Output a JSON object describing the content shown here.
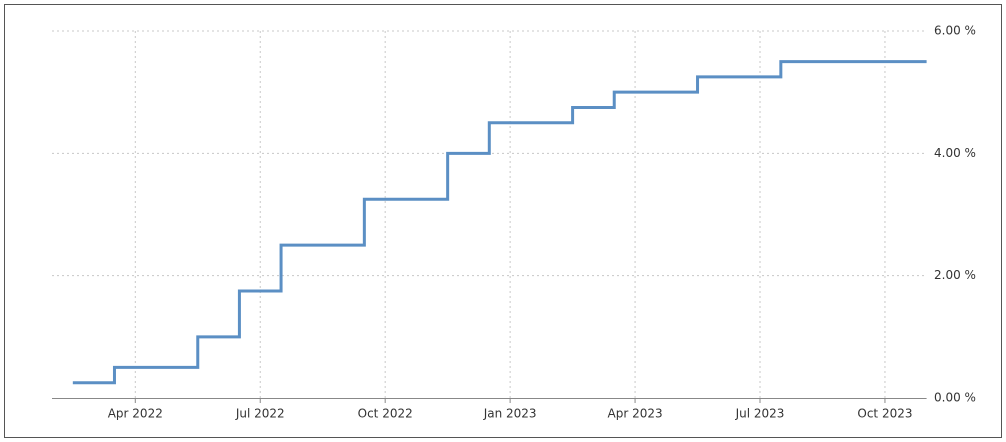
{
  "chart_data": {
    "type": "line",
    "step": "post",
    "color": "#5b8fc4",
    "grid": true,
    "x": [
      "2022-02",
      "2022-03",
      "2022-05",
      "2022-06",
      "2022-07",
      "2022-09",
      "2022-11",
      "2022-12",
      "2023-02",
      "2023-03",
      "2023-05",
      "2023-07"
    ],
    "values": [
      0.25,
      0.5,
      1.0,
      1.75,
      2.5,
      3.25,
      4.0,
      4.5,
      4.75,
      5.0,
      5.25,
      5.5
    ],
    "xlim": [
      "2022-02",
      "2023-11"
    ],
    "xticks": [
      {
        "value": "2022-04",
        "label": "Apr 2022"
      },
      {
        "value": "2022-07",
        "label": "Jul 2022"
      },
      {
        "value": "2022-10",
        "label": "Oct 2022"
      },
      {
        "value": "2023-01",
        "label": "Jan 2023"
      },
      {
        "value": "2023-04",
        "label": "Apr 2023"
      },
      {
        "value": "2023-07",
        "label": "Jul 2023"
      },
      {
        "value": "2023-10",
        "label": "Oct 2023"
      }
    ],
    "ylim": [
      0,
      6
    ],
    "yticks": [
      {
        "value": 0,
        "label": "0.00 %"
      },
      {
        "value": 2,
        "label": "2.00 %"
      },
      {
        "value": 4,
        "label": "4.00 %"
      },
      {
        "value": 6,
        "label": "6.00 %"
      }
    ]
  }
}
